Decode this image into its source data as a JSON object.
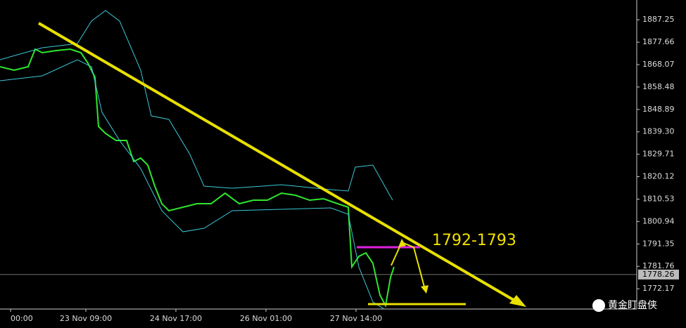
{
  "chart_data": {
    "type": "line",
    "xlim": [
      0,
      226.25
    ],
    "xticks": [
      {
        "value": 3.75,
        "label": "00:00"
      },
      {
        "value": 30.5,
        "label": "23 Nov 09:00"
      },
      {
        "value": 62.5,
        "label": "24 Nov 17:00"
      },
      {
        "value": 94.5,
        "label": "26 Nov 01:00"
      },
      {
        "value": 126.5,
        "label": "27 Nov 14:00"
      }
    ],
    "ylim": [
      1763.5,
      1895.7
    ],
    "yticks": [
      1887.25,
      1877.66,
      1868.07,
      1858.48,
      1848.89,
      {
        "value": 1839.3,
        "label": "1839.30"
      },
      1829.71,
      1820.12,
      1810.53,
      1800.94,
      1791.35,
      1781.76,
      1772.17
    ],
    "current_price": 1778.26,
    "series": [
      {
        "color": "#2ee62e",
        "x": [
          0,
          5,
          10,
          12.5,
          15,
          20,
          25,
          28.75,
          31.25,
          33.75,
          35,
          37.5,
          41.25,
          45,
          47.5,
          50,
          52.5,
          55,
          57.5,
          60,
          65,
          70,
          75,
          80,
          85,
          90,
          95,
          100,
          105,
          110,
          115,
          120,
          123.75,
          125,
          127.5,
          130,
          132.5,
          135,
          137,
          138.75,
          140
        ],
        "values": [
          1867.15,
          1865.65,
          1867.15,
          1874.67,
          1873.16,
          1874.07,
          1874.67,
          1873.16,
          1868.66,
          1862.65,
          1841.61,
          1838.61,
          1835.6,
          1835.6,
          1826.59,
          1828.09,
          1825.09,
          1816.07,
          1808.56,
          1805.56,
          1807.06,
          1808.56,
          1808.56,
          1813.07,
          1808.56,
          1810.06,
          1810.06,
          1813.07,
          1812.17,
          1810.06,
          1810.66,
          1808.56,
          1807.06,
          1781.52,
          1786.02,
          1787.53,
          1783.02,
          1769.5,
          1764.99,
          1777.01,
          1781.52
        ]
      },
      {
        "color": "#3cc8d8",
        "x": [
          0,
          15,
          27.5,
          32.5,
          37.5,
          42.5,
          50,
          53.75,
          60,
          67.5,
          72.5,
          82.5,
          100,
          117.5,
          123.75,
          126.25,
          132.5,
          139.5
        ],
        "values": [
          1870.16,
          1875.27,
          1877.07,
          1886.69,
          1891.19,
          1886.69,
          1865.65,
          1846.12,
          1844.62,
          1829.59,
          1816.07,
          1815.17,
          1816.67,
          1814.57,
          1813.97,
          1824.19,
          1825.09,
          1810.06
        ]
      },
      {
        "color": "#3cc8d8",
        "x": [
          0,
          15,
          27.5,
          32.5,
          36.25,
          42.5,
          50,
          57.5,
          65,
          72.5,
          82.5,
          100,
          117.5,
          123.75,
          127.5,
          132.5,
          136.25
        ],
        "values": [
          1861.14,
          1863.25,
          1870.16,
          1867.15,
          1847.62,
          1835.6,
          1823.58,
          1805.56,
          1796.54,
          1798.04,
          1805.56,
          1806.16,
          1806.76,
          1804.05,
          1781.52,
          1766.49,
          1763.7
        ]
      }
    ],
    "annotation": "1792-1793",
    "watermark": "黄金盯盘侠"
  }
}
